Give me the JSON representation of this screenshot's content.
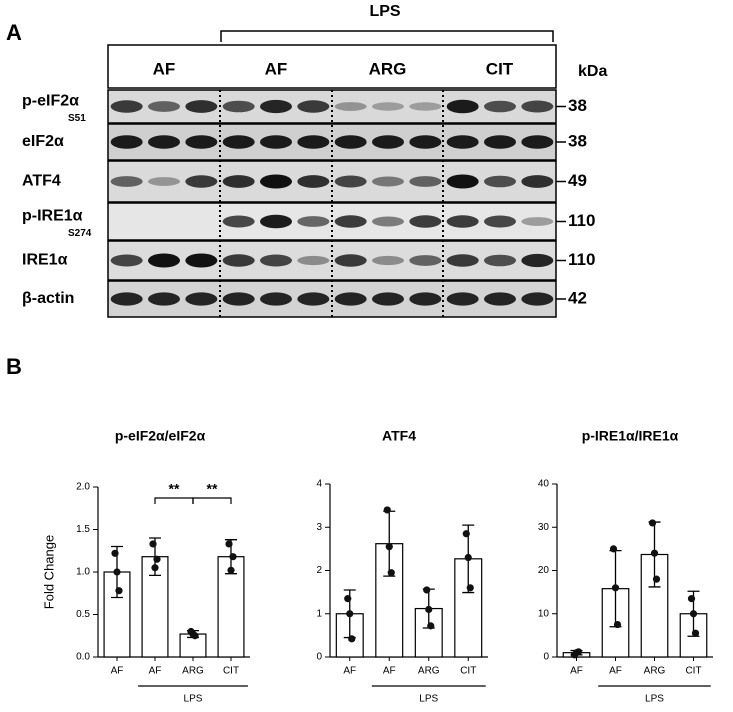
{
  "figure": {
    "panel_a": "A",
    "panel_b": "B",
    "blot": {
      "group_label": "LPS",
      "lanes": [
        "AF",
        "AF",
        "ARG",
        "CIT"
      ],
      "unit": "kDa",
      "rows": [
        {
          "label": "p-eIF2α",
          "sub": "S51",
          "kda": 38
        },
        {
          "label": "eIF2α",
          "kda": 38
        },
        {
          "label": "ATF4",
          "kda": 49
        },
        {
          "label": "p-IRE1α",
          "sub": "S274",
          "kda": 110
        },
        {
          "label": "IRE1α",
          "kda": 110
        },
        {
          "label": "β-actin",
          "kda": 42
        }
      ]
    }
  },
  "chart_data": [
    {
      "type": "bar",
      "title": "p-eIF2α/eIF2α",
      "ylabel": "Fold Change",
      "categories": [
        "AF",
        "AF",
        "ARG",
        "CIT"
      ],
      "group_label": "LPS",
      "values": [
        1.0,
        1.18,
        0.27,
        1.18
      ],
      "errors": [
        0.3,
        0.22,
        0.04,
        0.2
      ],
      "points": [
        [
          1.22,
          1.0,
          0.78
        ],
        [
          1.33,
          1.05,
          1.15
        ],
        [
          0.3,
          0.27,
          0.25
        ],
        [
          1.33,
          1.02,
          1.18
        ]
      ],
      "annotations": [
        "**",
        "**"
      ],
      "color": "#ffffff",
      "ylim": [
        0,
        2.0
      ],
      "yticks": [
        {
          "value": 0,
          "label": "0.0"
        },
        0.5,
        {
          "value": 1,
          "label": "1.0"
        },
        1.5,
        {
          "value": 2,
          "label": "2.0"
        }
      ]
    },
    {
      "type": "bar",
      "title": "ATF4",
      "categories": [
        "AF",
        "AF",
        "ARG",
        "CIT"
      ],
      "group_label": "LPS",
      "values": [
        1.0,
        2.62,
        1.12,
        2.27
      ],
      "errors": [
        0.55,
        0.75,
        0.45,
        0.78
      ],
      "points": [
        [
          1.35,
          1.0,
          0.42
        ],
        [
          3.4,
          2.55,
          1.95
        ],
        [
          1.55,
          1.1,
          0.72
        ],
        [
          2.85,
          2.3,
          1.6
        ]
      ],
      "color": "#ffffff",
      "ylim": [
        0,
        4
      ],
      "yticks": [
        0,
        1,
        2,
        3,
        4
      ]
    },
    {
      "type": "bar",
      "title": "p-IRE1α/IRE1α",
      "categories": [
        "AF",
        "AF",
        "ARG",
        "CIT"
      ],
      "group_label": "LPS",
      "values": [
        1.0,
        15.8,
        23.7,
        10.0
      ],
      "errors": [
        0.5,
        8.8,
        7.5,
        5.2
      ],
      "points": [
        [
          0.5,
          1.0,
          1.2
        ],
        [
          25,
          16,
          7.5
        ],
        [
          31,
          24,
          18
        ],
        [
          13.5,
          10,
          5.5
        ]
      ],
      "color": "#ffffff",
      "ylim": [
        0,
        40
      ],
      "yticks": [
        0,
        10,
        20,
        30,
        40
      ]
    }
  ]
}
